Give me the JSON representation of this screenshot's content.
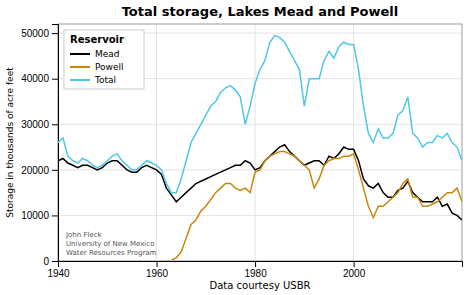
{
  "chart_data": {
    "type": "line",
    "title": "Total storage, Lakes Mead and Powell",
    "xlabel": "Data courtesy USBR",
    "ylabel": "Storage in thousands of acre feet",
    "annotation": "John Fleck\nUniversity of New Mexico\nWater Resources Program",
    "legend_title": "Reservoir",
    "legend": "upper left",
    "grid": true,
    "xlim": [
      1940,
      2022
    ],
    "ylim": [
      0,
      52000
    ],
    "xticks": [
      1940,
      1960,
      1980,
      2000
    ],
    "yticks": [
      0,
      10000,
      20000,
      30000,
      40000,
      50000
    ],
    "series": [
      {
        "name": "Mead",
        "color": "#000000",
        "x": [
          1940,
          1941,
          1942,
          1943,
          1944,
          1945,
          1946,
          1947,
          1948,
          1949,
          1950,
          1951,
          1952,
          1953,
          1954,
          1955,
          1956,
          1957,
          1958,
          1959,
          1960,
          1961,
          1962,
          1963,
          1964,
          1965,
          1966,
          1967,
          1968,
          1969,
          1970,
          1971,
          1972,
          1973,
          1974,
          1975,
          1976,
          1977,
          1978,
          1979,
          1980,
          1981,
          1982,
          1983,
          1984,
          1985,
          1986,
          1987,
          1988,
          1989,
          1990,
          1991,
          1992,
          1993,
          1994,
          1995,
          1996,
          1997,
          1998,
          1999,
          2000,
          2001,
          2002,
          2003,
          2004,
          2005,
          2006,
          2007,
          2008,
          2009,
          2010,
          2011,
          2012,
          2013,
          2014,
          2015,
          2016,
          2017,
          2018,
          2019,
          2020,
          2021,
          2022
        ],
        "values": [
          22000,
          22500,
          21500,
          21000,
          20500,
          21000,
          21000,
          20500,
          20000,
          20500,
          21500,
          22000,
          22000,
          21000,
          20000,
          19500,
          19500,
          20500,
          21000,
          20500,
          20000,
          19000,
          16000,
          14500,
          13000,
          14000,
          15000,
          16000,
          17000,
          17500,
          18000,
          18500,
          19000,
          19500,
          20000,
          20500,
          21000,
          21000,
          22000,
          21500,
          20000,
          20500,
          22000,
          23000,
          24000,
          25000,
          25500,
          24000,
          23000,
          22000,
          21000,
          21500,
          22000,
          22000,
          21000,
          23000,
          22500,
          23500,
          25000,
          24500,
          24500,
          22000,
          18000,
          16500,
          16000,
          17000,
          15000,
          14000,
          14000,
          15500,
          16000,
          17500,
          15000,
          14000,
          13000,
          13000,
          13000,
          14000,
          12000,
          12500,
          10500,
          10000,
          9000
        ]
      },
      {
        "name": "Powell",
        "color": "#c8860a",
        "x": [
          1963,
          1964,
          1965,
          1966,
          1967,
          1968,
          1969,
          1970,
          1971,
          1972,
          1973,
          1974,
          1975,
          1976,
          1977,
          1978,
          1979,
          1980,
          1981,
          1982,
          1983,
          1984,
          1985,
          1986,
          1987,
          1988,
          1989,
          1990,
          1991,
          1992,
          1993,
          1994,
          1995,
          1996,
          1997,
          1998,
          1999,
          2000,
          2001,
          2002,
          2003,
          2004,
          2005,
          2006,
          2007,
          2008,
          2009,
          2010,
          2011,
          2012,
          2013,
          2014,
          2015,
          2016,
          2017,
          2018,
          2019,
          2020,
          2021,
          2022
        ],
        "values": [
          200,
          700,
          2000,
          5000,
          8000,
          9000,
          11000,
          12000,
          13500,
          15000,
          16000,
          17000,
          17000,
          16000,
          15500,
          16000,
          15000,
          19500,
          20000,
          22000,
          23000,
          23500,
          24000,
          24000,
          23500,
          23000,
          22000,
          21000,
          20000,
          16000,
          18000,
          21000,
          22000,
          22500,
          22500,
          23000,
          23000,
          23500,
          20000,
          16000,
          12000,
          9500,
          12000,
          12000,
          13000,
          14000,
          15000,
          17000,
          18000,
          14000,
          14000,
          12000,
          12000,
          12500,
          13000,
          14000,
          15000,
          15000,
          16000,
          13000
        ]
      },
      {
        "name": "Total",
        "color": "#4dc8e8",
        "x": [
          1940,
          1941,
          1942,
          1943,
          1944,
          1945,
          1946,
          1947,
          1948,
          1949,
          1950,
          1951,
          1952,
          1953,
          1954,
          1955,
          1956,
          1957,
          1958,
          1959,
          1960,
          1961,
          1962,
          1963,
          1964,
          1965,
          1966,
          1967,
          1968,
          1969,
          1970,
          1971,
          1972,
          1973,
          1974,
          1975,
          1976,
          1977,
          1978,
          1979,
          1980,
          1981,
          1982,
          1983,
          1984,
          1985,
          1986,
          1987,
          1988,
          1989,
          1990,
          1991,
          1992,
          1993,
          1994,
          1995,
          1996,
          1997,
          1998,
          1999,
          2000,
          2001,
          2002,
          2003,
          2004,
          2005,
          2006,
          2007,
          2008,
          2009,
          2010,
          2011,
          2012,
          2013,
          2014,
          2015,
          2016,
          2017,
          2018,
          2019,
          2020,
          2021,
          2022
        ],
        "values": [
          26000,
          27000,
          23000,
          22000,
          21500,
          22500,
          22000,
          21000,
          20500,
          21000,
          22000,
          23000,
          23500,
          22000,
          21000,
          20000,
          20000,
          21000,
          22000,
          21500,
          21000,
          20000,
          17000,
          15000,
          15000,
          18000,
          22000,
          26000,
          28000,
          30000,
          32000,
          34000,
          35000,
          37000,
          38000,
          38500,
          37500,
          36000,
          30000,
          34000,
          39000,
          42000,
          44000,
          48000,
          49500,
          49000,
          48000,
          46000,
          44000,
          42000,
          34000,
          40000,
          40000,
          40000,
          44000,
          46000,
          44500,
          47000,
          48000,
          47500,
          47500,
          42000,
          34000,
          28000,
          26000,
          29000,
          27000,
          27000,
          28000,
          32000,
          33000,
          36000,
          28000,
          27000,
          25000,
          26000,
          26000,
          27500,
          27000,
          28000,
          26000,
          25000,
          22000
        ]
      }
    ]
  }
}
